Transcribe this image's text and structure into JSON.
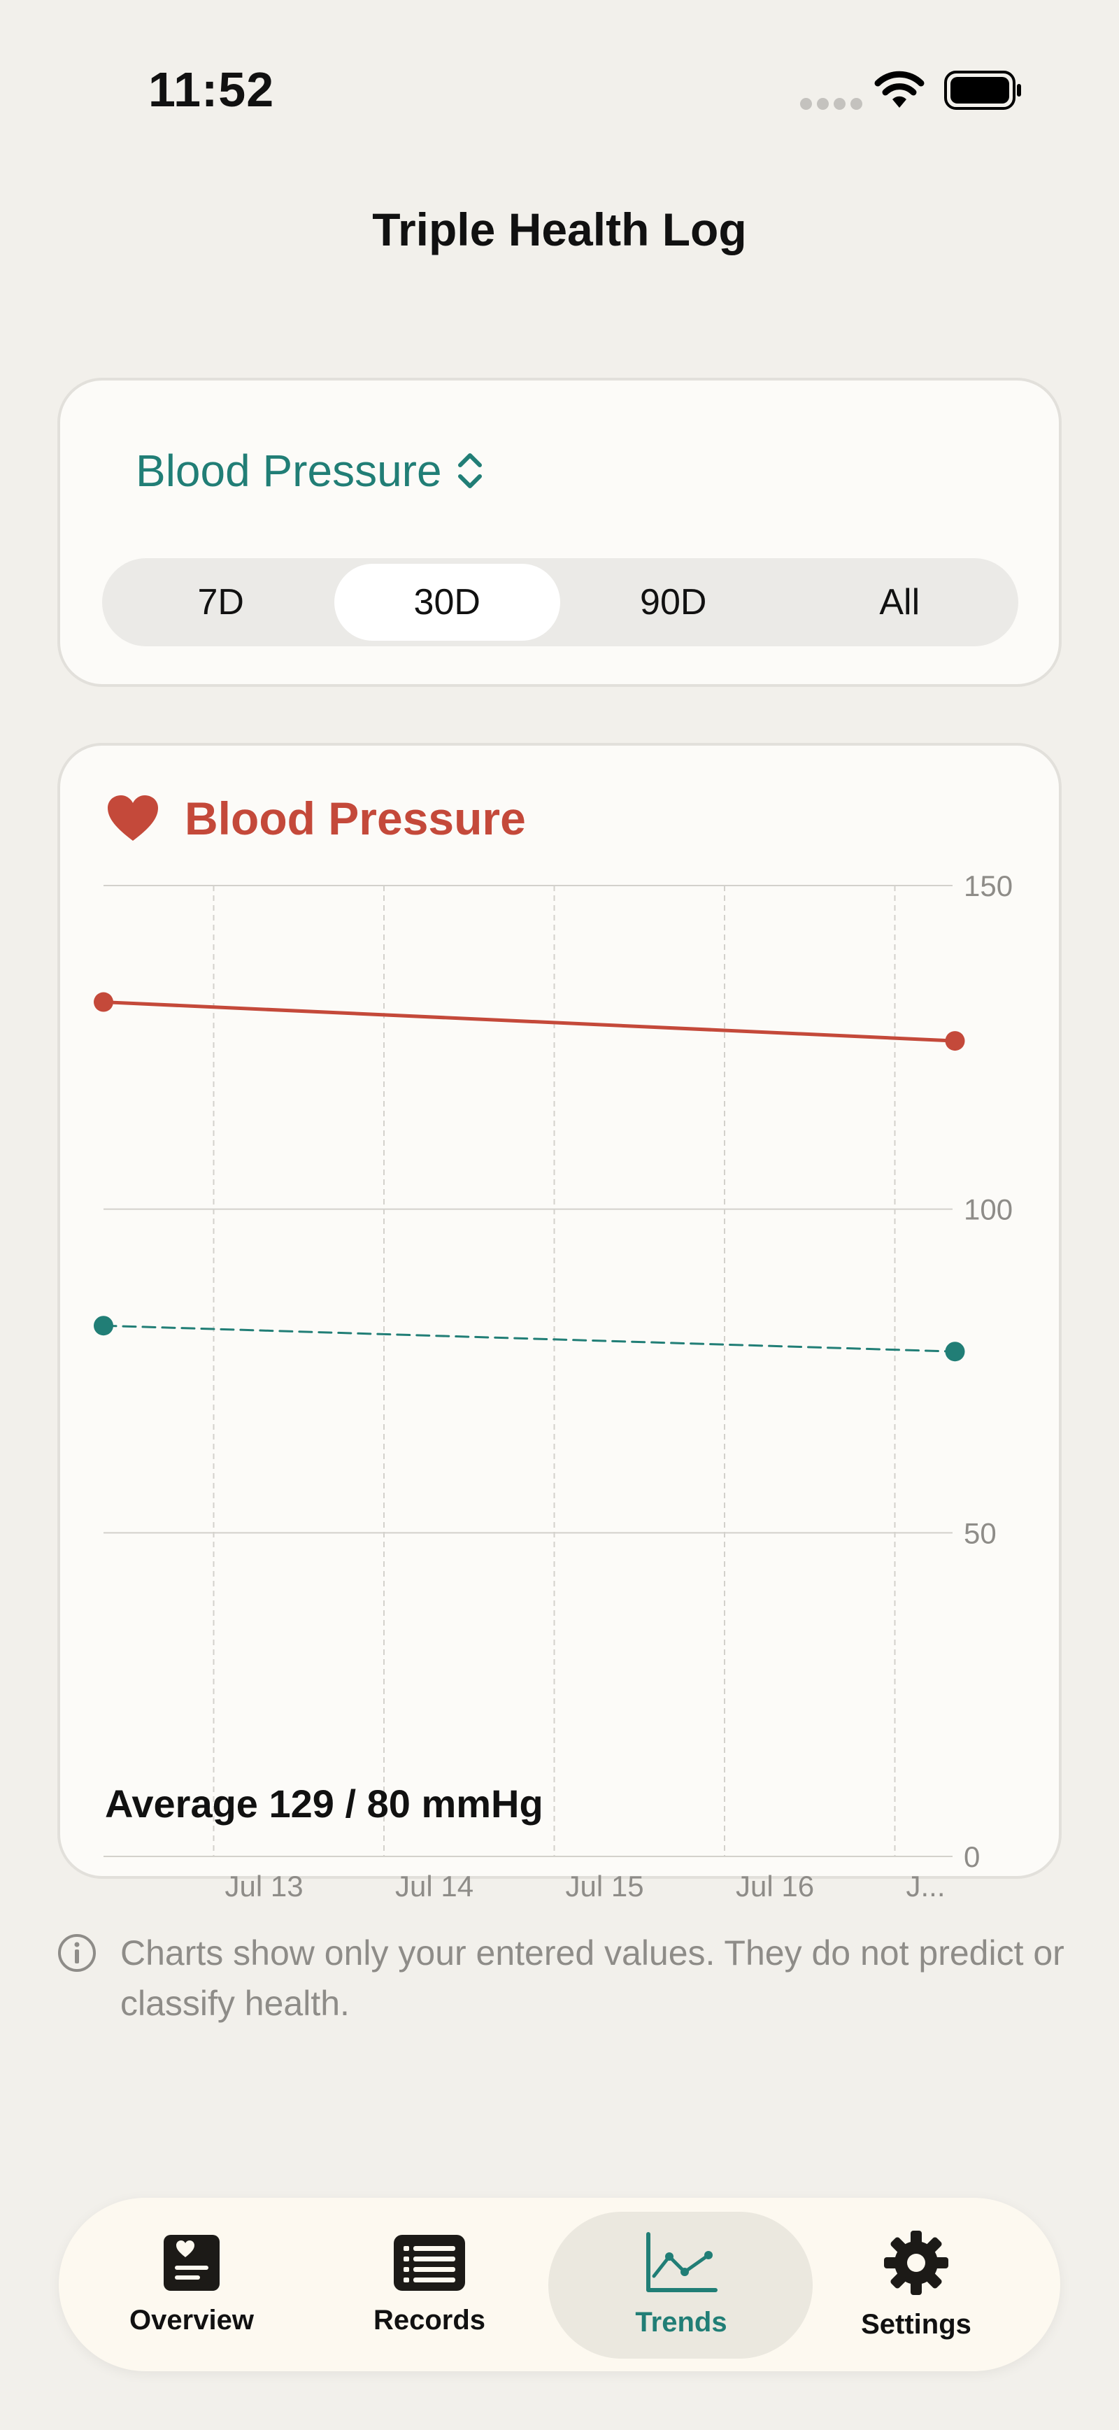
{
  "status_bar": {
    "time": "11:52"
  },
  "app": {
    "title": "Triple Health Log"
  },
  "selector": {
    "metric": "Blood Pressure",
    "ranges": [
      "7D",
      "30D",
      "90D",
      "All"
    ],
    "selected_range": "30D"
  },
  "chart_card": {
    "title": "Blood Pressure",
    "icon": "heart-icon",
    "average": "Average 129 / 80 mmHg"
  },
  "chart_data": {
    "type": "line",
    "title": "Blood Pressure",
    "x_tick_labels": [
      "Jul 13",
      "Jul 14",
      "Jul 15",
      "Jul 16",
      "J..."
    ],
    "y_ticks": [
      0,
      50,
      100,
      150
    ],
    "ylim": [
      0,
      150
    ],
    "grid": true,
    "series": [
      {
        "style": "solid",
        "color": "#c4493a",
        "points": [
          {
            "x": "Jul 12",
            "y": 132
          },
          {
            "x": "Jul 17",
            "y": 126
          }
        ]
      },
      {
        "style": "dashed",
        "color": "#217e76",
        "points": [
          {
            "x": "Jul 12",
            "y": 82
          },
          {
            "x": "Jul 17",
            "y": 78
          }
        ]
      }
    ]
  },
  "info": {
    "text": "Charts show only your entered values. They do not predict or classify health."
  },
  "tabbar": {
    "tabs": [
      {
        "label": "Overview",
        "icon": "overview-icon"
      },
      {
        "label": "Records",
        "icon": "records-icon"
      },
      {
        "label": "Trends",
        "icon": "trends-icon"
      },
      {
        "label": "Settings",
        "icon": "gear-icon"
      }
    ],
    "active": "Trends"
  },
  "colors": {
    "accent": "#217e76",
    "bp": "#c4493a",
    "background": "#f2f0eb"
  }
}
